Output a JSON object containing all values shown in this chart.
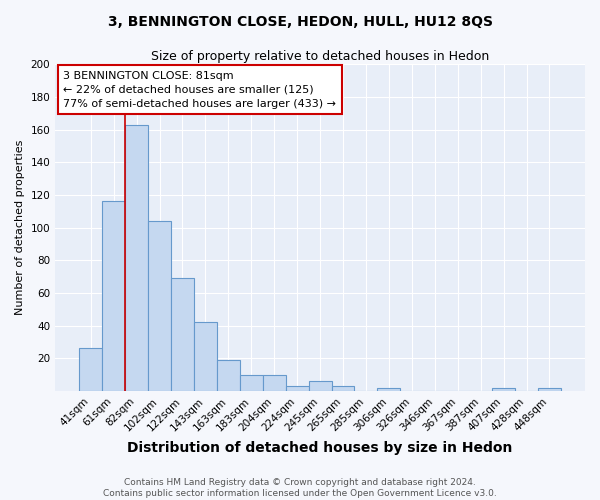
{
  "title": "3, BENNINGTON CLOSE, HEDON, HULL, HU12 8QS",
  "subtitle": "Size of property relative to detached houses in Hedon",
  "xlabel": "Distribution of detached houses by size in Hedon",
  "ylabel": "Number of detached properties",
  "bar_labels": [
    "41sqm",
    "61sqm",
    "82sqm",
    "102sqm",
    "122sqm",
    "143sqm",
    "163sqm",
    "183sqm",
    "204sqm",
    "224sqm",
    "245sqm",
    "265sqm",
    "285sqm",
    "306sqm",
    "326sqm",
    "346sqm",
    "367sqm",
    "387sqm",
    "407sqm",
    "428sqm",
    "448sqm"
  ],
  "bar_values": [
    26,
    116,
    163,
    104,
    69,
    42,
    19,
    10,
    10,
    3,
    6,
    3,
    0,
    2,
    0,
    0,
    0,
    0,
    2,
    0,
    2
  ],
  "bar_color": "#c5d8f0",
  "bar_edge_color": "#6699cc",
  "vline_index": 2,
  "vline_color": "#cc0000",
  "ylim": [
    0,
    200
  ],
  "yticks": [
    0,
    20,
    40,
    60,
    80,
    100,
    120,
    140,
    160,
    180,
    200
  ],
  "annotation_line1": "3 BENNINGTON CLOSE: 81sqm",
  "annotation_line2": "← 22% of detached houses are smaller (125)",
  "annotation_line3": "77% of semi-detached houses are larger (433) →",
  "annotation_box_color": "#ffffff",
  "annotation_box_edge": "#cc0000",
  "plot_bg_color": "#e8eef8",
  "fig_bg_color": "#f5f7fc",
  "footer": "Contains HM Land Registry data © Crown copyright and database right 2024.\nContains public sector information licensed under the Open Government Licence v3.0.",
  "title_fontsize": 10,
  "subtitle_fontsize": 9,
  "xlabel_fontsize": 10,
  "ylabel_fontsize": 8,
  "tick_fontsize": 7.5,
  "annotation_fontsize": 8,
  "footer_fontsize": 6.5
}
